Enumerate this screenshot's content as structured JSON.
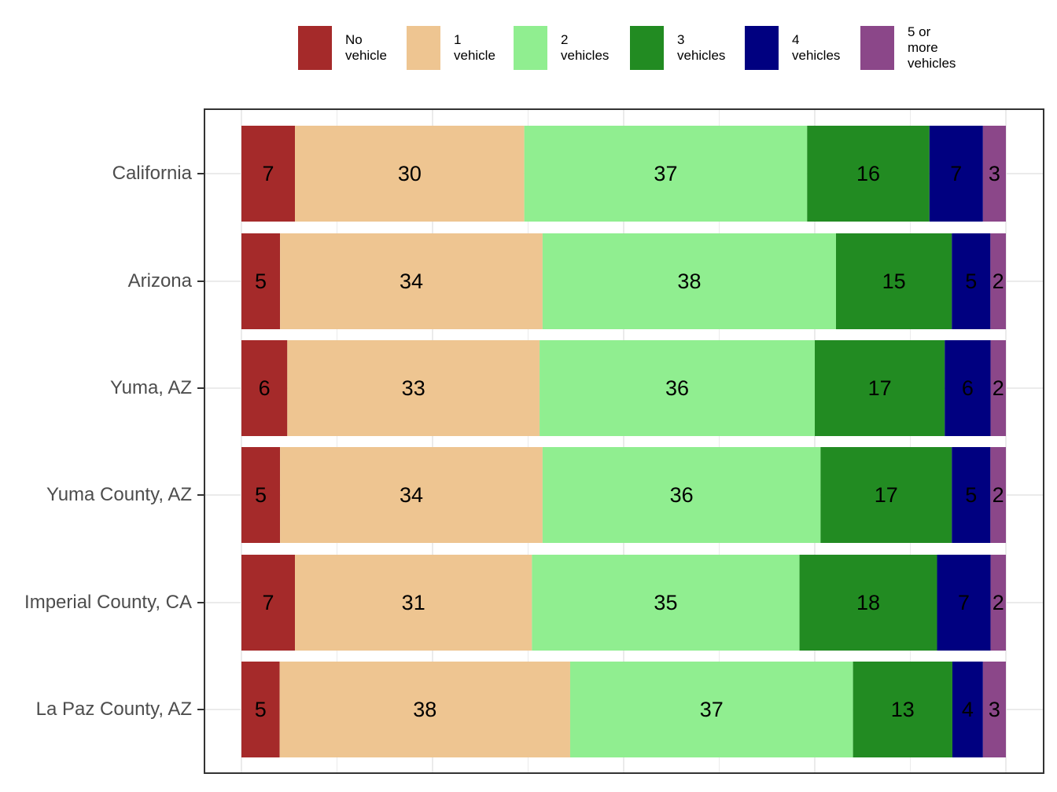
{
  "chart_data": {
    "type": "bar",
    "orientation": "horizontal",
    "stacked": true,
    "normalized": true,
    "categories": [
      "California",
      "Arizona",
      "Yuma, AZ",
      "Yuma County, AZ",
      "Imperial County, CA",
      "La Paz County, AZ"
    ],
    "series": [
      {
        "name": "No\nvehicle",
        "color": "#a52a2a",
        "values": [
          7,
          5,
          6,
          5,
          7,
          5
        ]
      },
      {
        "name": "1\nvehicle",
        "color": "#eec591",
        "values": [
          30,
          34,
          33,
          34,
          31,
          38
        ]
      },
      {
        "name": "2\nvehicles",
        "color": "#90ee90",
        "values": [
          37,
          38,
          36,
          36,
          35,
          37
        ]
      },
      {
        "name": "3\nvehicles",
        "color": "#228b22",
        "values": [
          16,
          15,
          17,
          17,
          18,
          13
        ]
      },
      {
        "name": "4\nvehicles",
        "color": "#000080",
        "values": [
          7,
          5,
          6,
          5,
          7,
          4
        ]
      },
      {
        "name": "5 or\nmore\nvehicles",
        "color": "#8b4789",
        "values": [
          3,
          2,
          2,
          2,
          2,
          3
        ]
      }
    ],
    "legend_position": "top",
    "grid": true,
    "xlim": [
      0,
      100
    ]
  }
}
